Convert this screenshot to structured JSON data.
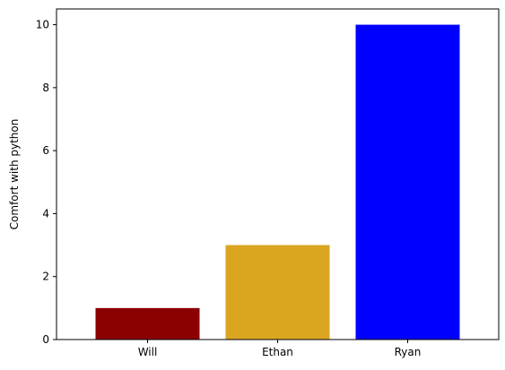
{
  "chart_data": {
    "type": "bar",
    "title": "",
    "xlabel": "",
    "ylabel": "Comfort with python",
    "categories": [
      "Will",
      "Ethan",
      "Ryan"
    ],
    "values": [
      1,
      3,
      10
    ],
    "bar_colors": [
      "#8b0000",
      "#daa520",
      "#0000ff"
    ],
    "ylim": [
      0,
      10.5
    ],
    "yticks": [
      0,
      2,
      4,
      6,
      8,
      10
    ],
    "grid": false,
    "legend": "none"
  }
}
